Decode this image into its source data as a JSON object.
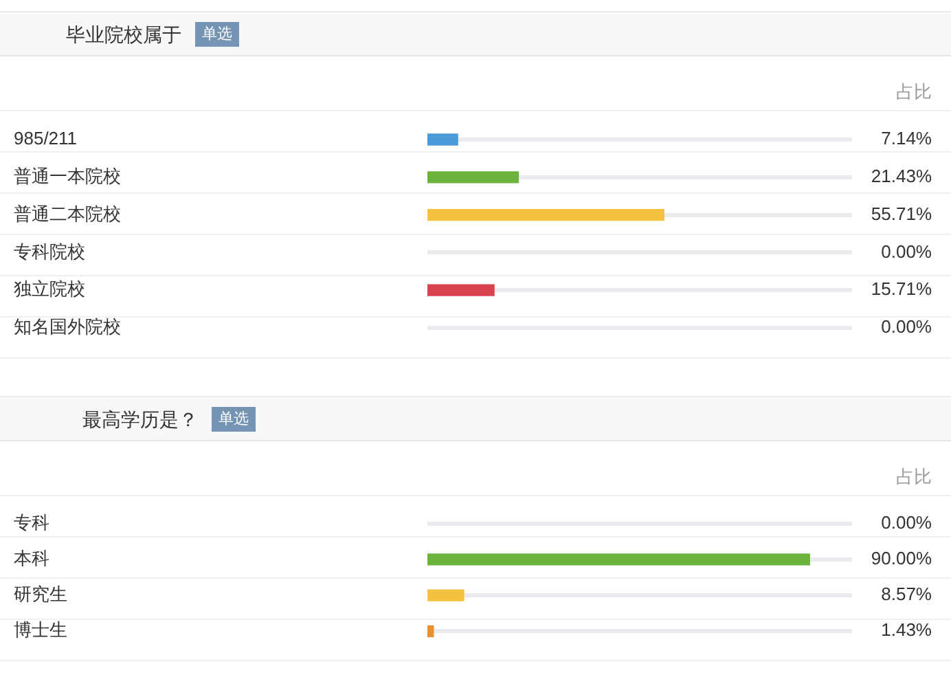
{
  "chart_data": [
    {
      "type": "bar",
      "orientation": "horizontal",
      "title": "毕业院校属于",
      "subtitle": "单选",
      "annotations": [
        "占比"
      ],
      "categories": [
        "985/211",
        "普通一本院校",
        "普通二本院校",
        "专科院校",
        "独立院校",
        "知名国外院校"
      ],
      "values": [
        7.14,
        21.43,
        55.71,
        0,
        15.71,
        0
      ],
      "value_labels": [
        "7.14%",
        "21.43%",
        "55.71%",
        "0.00%",
        "15.71%",
        "0.00%"
      ],
      "colors": [
        "#4d9ad9",
        "#6cb33e",
        "#f4c140",
        null,
        "#d9434e",
        null
      ],
      "xlim": [
        0,
        100
      ],
      "tick_labels": "y",
      "grid": "y"
    },
    {
      "type": "bar",
      "orientation": "horizontal",
      "title": "最高学历是？",
      "subtitle": "单选",
      "annotations": [
        "占比"
      ],
      "categories": [
        "专科",
        "本科",
        "研究生",
        "博士生"
      ],
      "values": [
        0,
        90,
        8.57,
        1.43
      ],
      "value_labels": [
        "0.00%",
        "90.00%",
        "8.57%",
        "1.43%"
      ],
      "colors": [
        null,
        "#6cb33e",
        "#f4c140",
        "#e8912d"
      ],
      "xlim": [
        0,
        100
      ],
      "tick_labels": "y",
      "grid": "y"
    }
  ]
}
